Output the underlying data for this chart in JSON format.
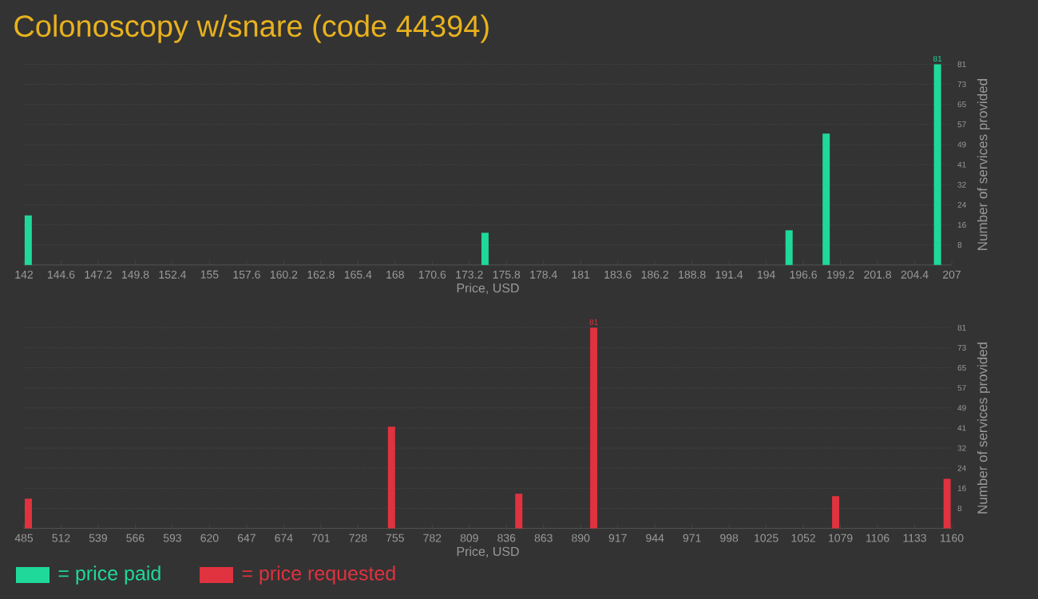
{
  "chart_data": [
    {
      "type": "bar",
      "title": "Colonoscopy w/snare (code 44394)",
      "xlabel": "Price, USD",
      "ylabel": "Number of services provided",
      "x": [
        142.3,
        174.3,
        195.6,
        198.2,
        206.0
      ],
      "series": [
        {
          "name": "= price paid",
          "color": "#1fd99b",
          "values": [
            20,
            13,
            14,
            53,
            81
          ],
          "value_labels": [
            null,
            null,
            null,
            null,
            "81"
          ]
        }
      ],
      "xlim": [
        142,
        207
      ],
      "xticks": [
        142,
        144.6,
        147.2,
        149.8,
        152.4,
        155,
        157.6,
        160.2,
        162.8,
        165.4,
        168,
        170.6,
        173.2,
        175.8,
        178.4,
        181,
        183.6,
        186.2,
        188.8,
        191.4,
        194,
        196.6,
        199.2,
        201.8,
        204.4,
        207
      ],
      "ylim": [
        0,
        81
      ],
      "yticks": [
        {
          "value": 8.1,
          "label": "8"
        },
        {
          "value": 16.2,
          "label": "16"
        },
        {
          "value": 24.3,
          "label": "24"
        },
        {
          "value": 32.4,
          "label": "32"
        },
        {
          "value": 40.5,
          "label": "41"
        },
        {
          "value": 48.6,
          "label": "49"
        },
        {
          "value": 56.7,
          "label": "57"
        },
        {
          "value": 64.8,
          "label": "65"
        },
        {
          "value": 72.9,
          "label": "73"
        },
        {
          "value": 81,
          "label": "81"
        }
      ],
      "grid": "y",
      "legend": "bottom left"
    },
    {
      "type": "bar",
      "xlabel": "Price, USD",
      "ylabel": "Number of services provided",
      "x": [
        488.2,
        752.4,
        845,
        899.5,
        1075.5,
        1156.6
      ],
      "series": [
        {
          "name": "= price requested",
          "color": "#e0323f",
          "values": [
            12,
            41,
            14,
            81,
            13,
            20
          ],
          "value_labels": [
            null,
            null,
            null,
            "81",
            null,
            null
          ]
        }
      ],
      "xlim": [
        485,
        1160
      ],
      "xticks": [
        485,
        512,
        539,
        566,
        593,
        620,
        647,
        674,
        701,
        728,
        755,
        782,
        809,
        836,
        863,
        890,
        917,
        944,
        971,
        998,
        1025,
        1052,
        1079,
        1106,
        1133,
        1160
      ],
      "ylim": [
        0,
        81
      ],
      "yticks": [
        {
          "value": 8.1,
          "label": "8"
        },
        {
          "value": 16.2,
          "label": "16"
        },
        {
          "value": 24.3,
          "label": "24"
        },
        {
          "value": 32.4,
          "label": "32"
        },
        {
          "value": 40.5,
          "label": "41"
        },
        {
          "value": 48.6,
          "label": "49"
        },
        {
          "value": 56.7,
          "label": "57"
        },
        {
          "value": 64.8,
          "label": "65"
        },
        {
          "value": 72.9,
          "label": "73"
        },
        {
          "value": 81,
          "label": "81"
        }
      ],
      "grid": "y",
      "legend": "bottom left"
    }
  ]
}
